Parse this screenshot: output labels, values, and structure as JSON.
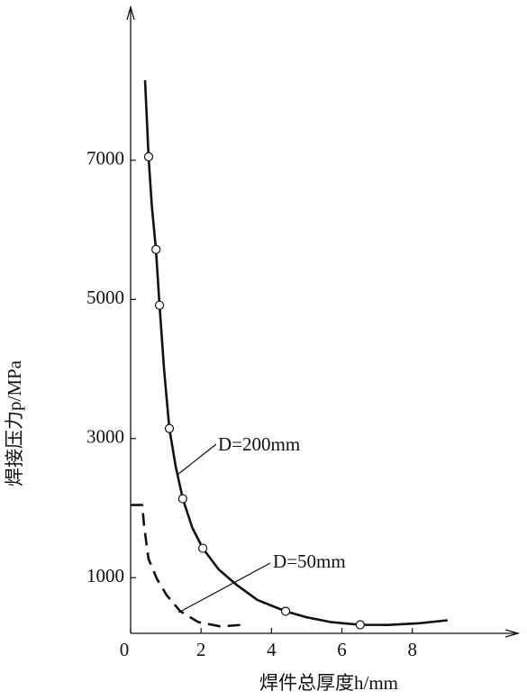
{
  "chart_data": {
    "type": "line",
    "xlabel": "焊件总厚度h/mm",
    "ylabel": "焊接压力p/MPa",
    "xlim": [
      0,
      11
    ],
    "ylim": [
      200,
      9200
    ],
    "xticks": [
      0,
      2,
      4,
      6,
      8
    ],
    "yticks": [
      1000,
      3000,
      5000,
      7000
    ],
    "series": [
      {
        "name": "D=200mm",
        "color": "#111111",
        "dashed": false,
        "x": [
          0.41,
          0.46,
          0.51,
          0.6,
          0.72,
          0.82,
          0.95,
          1.1,
          1.28,
          1.48,
          1.75,
          2.05,
          2.5,
          3.0,
          3.6,
          4.4,
          5.0,
          5.7,
          6.52,
          7.3,
          8.2,
          9.0
        ],
        "values": [
          8150,
          7600,
          7050,
          6350,
          5718,
          4916,
          4000,
          3144,
          2600,
          2135,
          1720,
          1423,
          1120,
          900,
          680,
          517,
          430,
          360,
          323,
          320,
          345,
          388
        ],
        "points": {
          "x": [
            0.51,
            0.72,
            0.82,
            1.1,
            1.48,
            2.05,
            4.4,
            6.52
          ],
          "values": [
            7050,
            5718,
            4916,
            3144,
            2135,
            1423,
            517,
            323
          ]
        }
      },
      {
        "name": "D=50mm",
        "color": "#111111",
        "dashed": true,
        "x": [
          0,
          0.33,
          0.38,
          0.51,
          0.75,
          1.02,
          1.41,
          1.92,
          2.56,
          3.2
        ],
        "values": [
          2044,
          2044,
          1750,
          1268,
          980,
          750,
          517,
          362,
          298,
          323
        ]
      }
    ]
  }
}
